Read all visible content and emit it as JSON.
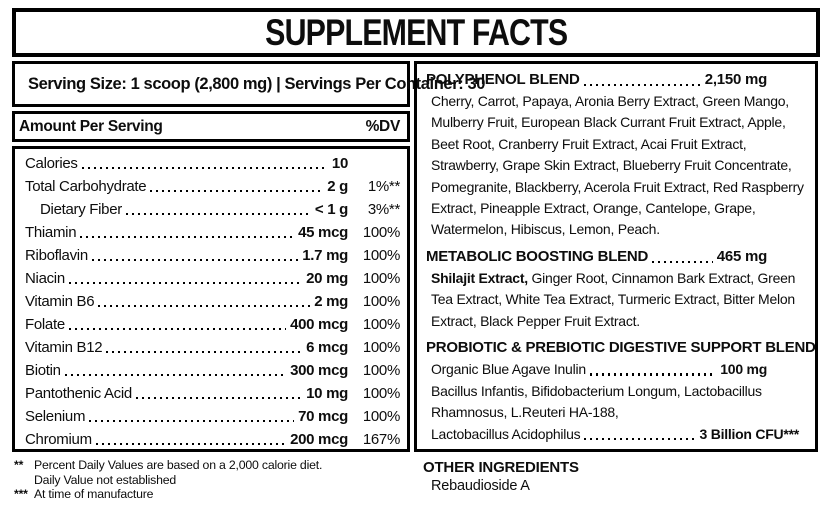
{
  "title": "SUPPLEMENT FACTS",
  "serving_info": "Serving Size: 1 scoop (2,800 mg) | Servings Per Container: 30",
  "table": {
    "header_left": "Amount Per Serving",
    "header_right": "%DV",
    "rows": [
      {
        "name": "Calories",
        "amount": "10",
        "dv": ""
      },
      {
        "name": "Total Carbohydrate",
        "amount": "2 g",
        "dv": "1%**"
      },
      {
        "name": "Dietary Fiber",
        "amount": "< 1 g",
        "dv": "3%**"
      },
      {
        "name": "Thiamin",
        "amount": "45 mcg",
        "dv": "100%"
      },
      {
        "name": "Riboflavin",
        "amount": "1.7 mg",
        "dv": "100%"
      },
      {
        "name": "Niacin",
        "amount": "20 mg",
        "dv": "100%"
      },
      {
        "name": "Vitamin B6",
        "amount": "2 mg",
        "dv": "100%"
      },
      {
        "name": "Folate",
        "amount": "400 mcg",
        "dv": "100%"
      },
      {
        "name": "Vitamin B12",
        "amount": "6 mcg",
        "dv": "100%"
      },
      {
        "name": "Biotin",
        "amount": "300 mcg",
        "dv": "100%"
      },
      {
        "name": "Pantothenic Acid",
        "amount": "10 mg",
        "dv": "100%"
      },
      {
        "name": "Selenium",
        "amount": "70 mcg",
        "dv": "100%"
      },
      {
        "name": "Chromium",
        "amount": "200 mcg",
        "dv": "167%"
      }
    ]
  },
  "footnotes": {
    "fn1_mark": "**",
    "fn1_text": "Percent Daily Values are based on a 2,000 calorie diet.",
    "fn2_text": "Daily Value not established",
    "fn3_mark": "***",
    "fn3_text": "At time of manufacture"
  },
  "blends": {
    "polyphenol": {
      "name": "POLYPHENOL BLEND",
      "amount": "2,150 mg",
      "ingredients": "Cherry, Carrot, Papaya, Aronia Berry Extract, Green Mango, Mulberry Fruit, European Black Currant Fruit Extract, Apple, Beet Root, Cranberry Fruit Extract, Acai Fruit Extract, Strawberry, Grape Skin Extract, Blueberry Fruit Concentrate, Pomegranite, Blackberry, Acerola Fruit Extract, Red Raspberry Extract, Pineapple Extract, Orange, Cantelope,  Grape, Watermelon, Hibiscus, Lemon, Peach."
    },
    "metabolic": {
      "name": "METABOLIC BOOSTING BLEND",
      "amount": "465 mg",
      "lead_bold": "Shilajit Extract,",
      "ingredients": " Ginger Root, Cinnamon Bark Extract, Green Tea Extract, White Tea Extract, Turmeric Extract, Bitter Melon Extract, Black Pepper Fruit Extract."
    },
    "probiotic": {
      "name": "PROBIOTIC & PREBIOTIC DIGESTIVE SUPPORT BLEND",
      "inulin_name": "Organic Blue Agave Inulin",
      "inulin_amount": "100 mg",
      "ingredients": "Bacillus Infantis, Bifidobacterium Longum, Lactobacillus Rhamnosus, L.Reuteri HA-188,",
      "acidophilus_name": "Lactobacillus Acidophilus",
      "acidophilus_amount": "3 Billion CFU***"
    }
  },
  "other_ingredients": {
    "heading": "OTHER INGREDIENTS",
    "value": "Rebaudioside A"
  }
}
